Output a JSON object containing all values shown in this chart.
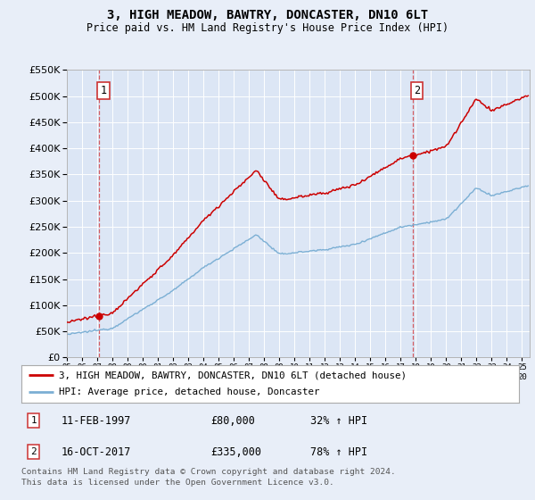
{
  "title": "3, HIGH MEADOW, BAWTRY, DONCASTER, DN10 6LT",
  "subtitle": "Price paid vs. HM Land Registry's House Price Index (HPI)",
  "legend_line1": "3, HIGH MEADOW, BAWTRY, DONCASTER, DN10 6LT (detached house)",
  "legend_line2": "HPI: Average price, detached house, Doncaster",
  "sale1_date": "11-FEB-1997",
  "sale1_price": "£80,000",
  "sale1_hpi": "32% ↑ HPI",
  "sale1_year": 1997.11,
  "sale1_value": 80000,
  "sale2_date": "16-OCT-2017",
  "sale2_price": "£335,000",
  "sale2_hpi": "78% ↑ HPI",
  "sale2_year": 2017.79,
  "sale2_value": 335000,
  "footer_line1": "Contains HM Land Registry data © Crown copyright and database right 2024.",
  "footer_line2": "This data is licensed under the Open Government Licence v3.0.",
  "ylim": [
    0,
    550000
  ],
  "yticks": [
    0,
    50000,
    100000,
    150000,
    200000,
    250000,
    300000,
    350000,
    400000,
    450000,
    500000,
    550000
  ],
  "xlim_start": 1995.0,
  "xlim_end": 2025.5,
  "bg_color": "#e8eef8",
  "plot_bg": "#dce6f5",
  "red_color": "#cc0000",
  "blue_color": "#7bafd4",
  "box_color": "#cc3333",
  "grid_color": "#ffffff",
  "title_fontsize": 10,
  "subtitle_fontsize": 8.5
}
